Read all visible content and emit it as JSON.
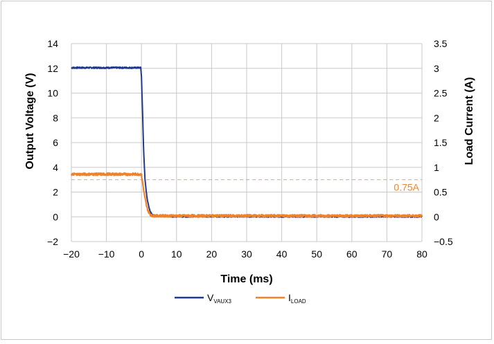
{
  "chart_data": {
    "type": "line",
    "title": "",
    "xlabel": "Time (ms)",
    "ylabel": "Output Voltage (V)",
    "y2label": "Load Current (A)",
    "xlim": [
      -20,
      80
    ],
    "ylim": [
      -2,
      14
    ],
    "y2lim": [
      -0.5,
      3.5
    ],
    "xticks": [
      "−20",
      "−10",
      "0",
      "10",
      "20",
      "30",
      "40",
      "50",
      "60",
      "70",
      "80"
    ],
    "yticks": [
      "−2",
      "0",
      "2",
      "4",
      "6",
      "8",
      "10",
      "12",
      "14"
    ],
    "y2ticks": [
      "−0.5",
      "0",
      "0.5",
      "1",
      "1.5",
      "2",
      "2.5",
      "3",
      "3.5"
    ],
    "grid": true,
    "legend_position": "bottom-center",
    "series": [
      {
        "name_main": "V",
        "name_sub": "VAUX3",
        "axis": "left",
        "color": "#1f3a8a",
        "x": [
          -20,
          -0.2,
          0,
          0.3,
          0.6,
          1,
          1.5,
          2,
          2.5,
          3,
          4,
          6,
          10,
          80
        ],
        "y": [
          12.05,
          12.05,
          11.3,
          8.5,
          5.5,
          3.0,
          1.7,
          0.9,
          0.45,
          0.2,
          0.08,
          0.05,
          0.03,
          0.02
        ]
      },
      {
        "name_main": "I",
        "name_sub": "LOAD",
        "axis": "right",
        "color": "#f0822a",
        "x": [
          -20,
          -0.2,
          0,
          0.5,
          1,
          1.5,
          2,
          2.5,
          3,
          80
        ],
        "y": [
          0.86,
          0.86,
          0.84,
          0.6,
          0.38,
          0.2,
          0.1,
          0.05,
          0.02,
          0.02
        ]
      }
    ],
    "annotation": {
      "label": "0.75A",
      "value": 0.75,
      "axis": "right",
      "color": "#f0822a"
    }
  }
}
